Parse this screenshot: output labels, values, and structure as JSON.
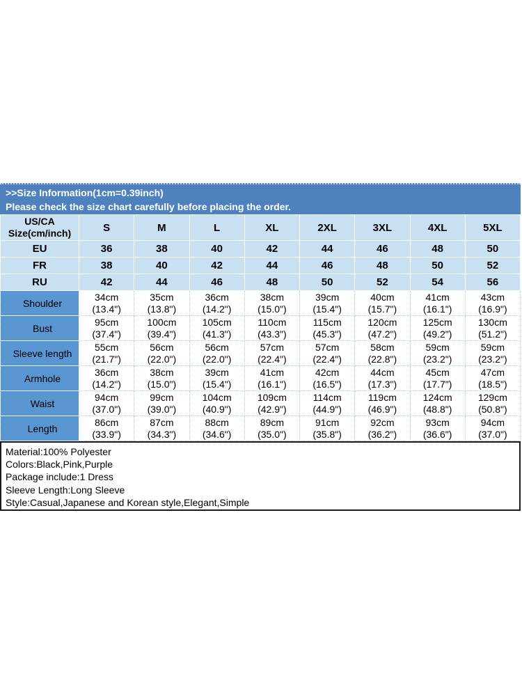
{
  "banner": {
    "line1": ">>Size Information(1cm=0.39inch)",
    "line2": "Please check the size chart carefully before placing the order."
  },
  "table": {
    "corner_line1": "US/CA",
    "corner_line2": "Size(cm/inch)",
    "sizes": [
      "S",
      "M",
      "L",
      "XL",
      "2XL",
      "3XL",
      "4XL",
      "5XL"
    ],
    "size_system_rows": [
      {
        "label": "EU",
        "values": [
          "36",
          "38",
          "40",
          "42",
          "44",
          "46",
          "48",
          "50"
        ]
      },
      {
        "label": "FR",
        "values": [
          "38",
          "40",
          "42",
          "44",
          "46",
          "48",
          "50",
          "52"
        ]
      },
      {
        "label": "RU",
        "values": [
          "42",
          "44",
          "46",
          "48",
          "50",
          "52",
          "54",
          "56"
        ]
      }
    ],
    "measurement_rows": [
      {
        "label": "Shoulder",
        "values": [
          [
            "34cm",
            "(13.4\")"
          ],
          [
            "35cm",
            "(13.8\")"
          ],
          [
            "36cm",
            "(14.2\")"
          ],
          [
            "38cm",
            "(15.0\")"
          ],
          [
            "39cm",
            "(15.4\")"
          ],
          [
            "40cm",
            "(15.7\")"
          ],
          [
            "41cm",
            "(16.1\")"
          ],
          [
            "43cm",
            "(16.9\")"
          ]
        ]
      },
      {
        "label": "Bust",
        "values": [
          [
            "95cm",
            "(37.4\")"
          ],
          [
            "100cm",
            "(39.4\")"
          ],
          [
            "105cm",
            "(41.3\")"
          ],
          [
            "110cm",
            "(43.3\")"
          ],
          [
            "115cm",
            "(45.3\")"
          ],
          [
            "120cm",
            "(47.2\")"
          ],
          [
            "125cm",
            "(49.2\")"
          ],
          [
            "130cm",
            "(51.2\")"
          ]
        ]
      },
      {
        "label": "Sleeve length",
        "values": [
          [
            "55cm",
            "(21.7\")"
          ],
          [
            "56cm",
            "(22.0\")"
          ],
          [
            "56cm",
            "(22.0\")"
          ],
          [
            "57cm",
            "(22.4\")"
          ],
          [
            "57cm",
            "(22.4\")"
          ],
          [
            "58cm",
            "(22.8\")"
          ],
          [
            "59cm",
            "(23.2\")"
          ],
          [
            "59cm",
            "(23.2\")"
          ]
        ]
      },
      {
        "label": "Armhole",
        "values": [
          [
            "36cm",
            "(14.2\")"
          ],
          [
            "38cm",
            "(15.0\")"
          ],
          [
            "39cm",
            "(15.4\")"
          ],
          [
            "41cm",
            "(16.1\")"
          ],
          [
            "42cm",
            "(16.5\")"
          ],
          [
            "44cm",
            "(17.3\")"
          ],
          [
            "45cm",
            "(17.7\")"
          ],
          [
            "47cm",
            "(18.5\")"
          ]
        ]
      },
      {
        "label": "Waist",
        "values": [
          [
            "94cm",
            "(37.0\")"
          ],
          [
            "99cm",
            "(39.0\")"
          ],
          [
            "104cm",
            "(40.9\")"
          ],
          [
            "109cm",
            "(42.9\")"
          ],
          [
            "114cm",
            "(44.9\")"
          ],
          [
            "119cm",
            "(46.9\")"
          ],
          [
            "124cm",
            "(48.8\")"
          ],
          [
            "129cm",
            "(50.8\")"
          ]
        ]
      },
      {
        "label": "Length",
        "values": [
          [
            "86cm",
            "(33.9\")"
          ],
          [
            "87cm",
            "(34.3\")"
          ],
          [
            "88cm",
            "(34.6\")"
          ],
          [
            "89cm",
            "(35.0\")"
          ],
          [
            "91cm",
            "(35.8\")"
          ],
          [
            "92cm",
            "(36.2\")"
          ],
          [
            "93cm",
            "(36.6\")"
          ],
          [
            "94cm",
            "(37.0\")"
          ]
        ]
      }
    ]
  },
  "details": {
    "lines": [
      "Material:100% Polyester",
      "Colors:Black,Pink,Purple",
      "Package include:1 Dress",
      "Sleeve Length:Long Sleeve",
      "Style:Casual,Japanese and Korean style,Elegant,Simple"
    ]
  },
  "colors": {
    "banner_bg": "#4E81BE",
    "header_cell_bg": "#C9DFF2",
    "label_col_bg": "#5A96D2",
    "white_cell_border": "#AACBE9",
    "info_box_border": "#1A1A1A"
  }
}
